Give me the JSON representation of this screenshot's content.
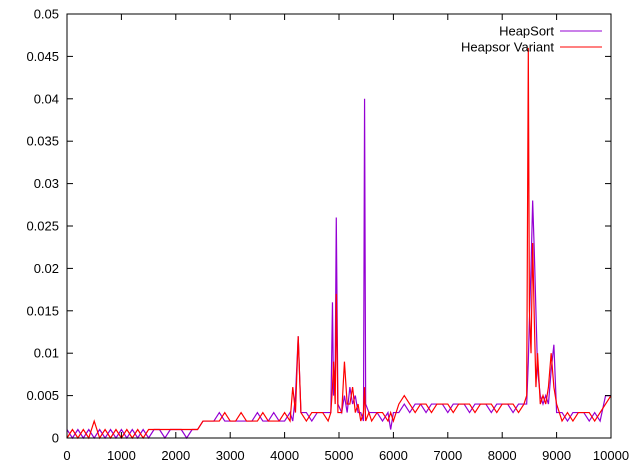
{
  "chart_data": {
    "type": "line",
    "title": "",
    "xlabel": "",
    "ylabel": "",
    "xlim": [
      0,
      10000
    ],
    "ylim": [
      0,
      0.05
    ],
    "x_ticks": [
      "0",
      "1000",
      "2000",
      "3000",
      "4000",
      "5000",
      "6000",
      "7000",
      "8000",
      "9000",
      "10000"
    ],
    "y_ticks": [
      "0",
      "0.005",
      "0.01",
      "0.015",
      "0.02",
      "0.025",
      "0.03",
      "0.035",
      "0.04",
      "0.045",
      "0.05"
    ],
    "grid": false,
    "legend_position": "top-right",
    "series": [
      {
        "name": "HeapSort",
        "color": "#9400d3",
        "points": [
          [
            0,
            0.001
          ],
          [
            100,
            0.0
          ],
          [
            200,
            0.001
          ],
          [
            300,
            0.0
          ],
          [
            400,
            0.001
          ],
          [
            500,
            0.0
          ],
          [
            600,
            0.001
          ],
          [
            700,
            0.0
          ],
          [
            800,
            0.001
          ],
          [
            900,
            0.0
          ],
          [
            1000,
            0.001
          ],
          [
            1100,
            0.0
          ],
          [
            1200,
            0.001
          ],
          [
            1300,
            0.0
          ],
          [
            1400,
            0.001
          ],
          [
            1500,
            0.0
          ],
          [
            1600,
            0.001
          ],
          [
            1700,
            0.001
          ],
          [
            1800,
            0.0
          ],
          [
            1900,
            0.001
          ],
          [
            2000,
            0.001
          ],
          [
            2100,
            0.001
          ],
          [
            2200,
            0.0
          ],
          [
            2300,
            0.001
          ],
          [
            2400,
            0.001
          ],
          [
            2500,
            0.002
          ],
          [
            2600,
            0.002
          ],
          [
            2700,
            0.002
          ],
          [
            2800,
            0.003
          ],
          [
            2900,
            0.002
          ],
          [
            3000,
            0.002
          ],
          [
            3100,
            0.002
          ],
          [
            3200,
            0.002
          ],
          [
            3300,
            0.002
          ],
          [
            3400,
            0.002
          ],
          [
            3500,
            0.003
          ],
          [
            3600,
            0.002
          ],
          [
            3700,
            0.002
          ],
          [
            3800,
            0.003
          ],
          [
            3900,
            0.002
          ],
          [
            4000,
            0.002
          ],
          [
            4100,
            0.003
          ],
          [
            4150,
            0.002
          ],
          [
            4200,
            0.005
          ],
          [
            4250,
            0.012
          ],
          [
            4300,
            0.003
          ],
          [
            4400,
            0.003
          ],
          [
            4500,
            0.002
          ],
          [
            4600,
            0.003
          ],
          [
            4700,
            0.003
          ],
          [
            4800,
            0.003
          ],
          [
            4850,
            0.003
          ],
          [
            4880,
            0.016
          ],
          [
            4900,
            0.005
          ],
          [
            4930,
            0.008
          ],
          [
            4950,
            0.026
          ],
          [
            4980,
            0.004
          ],
          [
            5050,
            0.003
          ],
          [
            5100,
            0.005
          ],
          [
            5150,
            0.003
          ],
          [
            5200,
            0.006
          ],
          [
            5250,
            0.004
          ],
          [
            5300,
            0.005
          ],
          [
            5350,
            0.003
          ],
          [
            5400,
            0.003
          ],
          [
            5450,
            0.002
          ],
          [
            5470,
            0.04
          ],
          [
            5490,
            0.004
          ],
          [
            5550,
            0.003
          ],
          [
            5600,
            0.003
          ],
          [
            5700,
            0.003
          ],
          [
            5800,
            0.002
          ],
          [
            5900,
            0.003
          ],
          [
            5950,
            0.001
          ],
          [
            6000,
            0.003
          ],
          [
            6100,
            0.003
          ],
          [
            6200,
            0.004
          ],
          [
            6300,
            0.003
          ],
          [
            6400,
            0.004
          ],
          [
            6500,
            0.004
          ],
          [
            6600,
            0.003
          ],
          [
            6700,
            0.004
          ],
          [
            6800,
            0.004
          ],
          [
            6900,
            0.004
          ],
          [
            7000,
            0.003
          ],
          [
            7100,
            0.004
          ],
          [
            7200,
            0.004
          ],
          [
            7300,
            0.004
          ],
          [
            7400,
            0.003
          ],
          [
            7500,
            0.004
          ],
          [
            7600,
            0.004
          ],
          [
            7700,
            0.004
          ],
          [
            7800,
            0.003
          ],
          [
            7900,
            0.004
          ],
          [
            8000,
            0.004
          ],
          [
            8100,
            0.004
          ],
          [
            8200,
            0.003
          ],
          [
            8300,
            0.004
          ],
          [
            8400,
            0.004
          ],
          [
            8450,
            0.004
          ],
          [
            8480,
            0.009
          ],
          [
            8500,
            0.014
          ],
          [
            8530,
            0.02
          ],
          [
            8560,
            0.028
          ],
          [
            8590,
            0.022
          ],
          [
            8620,
            0.015
          ],
          [
            8650,
            0.008
          ],
          [
            8700,
            0.005
          ],
          [
            8750,
            0.004
          ],
          [
            8800,
            0.005
          ],
          [
            8850,
            0.004
          ],
          [
            8900,
            0.008
          ],
          [
            8950,
            0.011
          ],
          [
            9000,
            0.003
          ],
          [
            9100,
            0.003
          ],
          [
            9200,
            0.002
          ],
          [
            9300,
            0.003
          ],
          [
            9400,
            0.003
          ],
          [
            9500,
            0.003
          ],
          [
            9600,
            0.002
          ],
          [
            9700,
            0.003
          ],
          [
            9800,
            0.002
          ],
          [
            9900,
            0.005
          ],
          [
            10000,
            0.005
          ]
        ]
      },
      {
        "name": "Heapsor Variant",
        "color": "#ff0000",
        "points": [
          [
            0,
            0.0
          ],
          [
            100,
            0.001
          ],
          [
            200,
            0.0
          ],
          [
            300,
            0.001
          ],
          [
            400,
            0.0
          ],
          [
            500,
            0.002
          ],
          [
            600,
            0.0
          ],
          [
            700,
            0.001
          ],
          [
            800,
            0.0
          ],
          [
            900,
            0.001
          ],
          [
            1000,
            0.0
          ],
          [
            1100,
            0.001
          ],
          [
            1200,
            0.0
          ],
          [
            1300,
            0.001
          ],
          [
            1400,
            0.0
          ],
          [
            1500,
            0.001
          ],
          [
            1600,
            0.001
          ],
          [
            1700,
            0.001
          ],
          [
            1800,
            0.001
          ],
          [
            1900,
            0.001
          ],
          [
            2000,
            0.001
          ],
          [
            2100,
            0.001
          ],
          [
            2200,
            0.001
          ],
          [
            2300,
            0.001
          ],
          [
            2400,
            0.001
          ],
          [
            2500,
            0.002
          ],
          [
            2600,
            0.002
          ],
          [
            2700,
            0.002
          ],
          [
            2800,
            0.002
          ],
          [
            2900,
            0.003
          ],
          [
            3000,
            0.002
          ],
          [
            3100,
            0.002
          ],
          [
            3200,
            0.003
          ],
          [
            3300,
            0.002
          ],
          [
            3400,
            0.002
          ],
          [
            3500,
            0.002
          ],
          [
            3600,
            0.003
          ],
          [
            3700,
            0.002
          ],
          [
            3800,
            0.002
          ],
          [
            3900,
            0.002
          ],
          [
            4000,
            0.003
          ],
          [
            4100,
            0.002
          ],
          [
            4150,
            0.006
          ],
          [
            4200,
            0.003
          ],
          [
            4250,
            0.012
          ],
          [
            4300,
            0.003
          ],
          [
            4400,
            0.002
          ],
          [
            4500,
            0.003
          ],
          [
            4600,
            0.003
          ],
          [
            4700,
            0.003
          ],
          [
            4800,
            0.002
          ],
          [
            4850,
            0.003
          ],
          [
            4880,
            0.006
          ],
          [
            4900,
            0.009
          ],
          [
            4930,
            0.004
          ],
          [
            4950,
            0.017
          ],
          [
            4980,
            0.003
          ],
          [
            5050,
            0.003
          ],
          [
            5100,
            0.009
          ],
          [
            5150,
            0.004
          ],
          [
            5200,
            0.004
          ],
          [
            5250,
            0.006
          ],
          [
            5300,
            0.003
          ],
          [
            5350,
            0.004
          ],
          [
            5400,
            0.002
          ],
          [
            5450,
            0.003
          ],
          [
            5470,
            0.006
          ],
          [
            5490,
            0.002
          ],
          [
            5550,
            0.003
          ],
          [
            5600,
            0.002
          ],
          [
            5700,
            0.003
          ],
          [
            5800,
            0.003
          ],
          [
            5900,
            0.002
          ],
          [
            5950,
            0.003
          ],
          [
            6000,
            0.002
          ],
          [
            6100,
            0.004
          ],
          [
            6200,
            0.005
          ],
          [
            6300,
            0.004
          ],
          [
            6400,
            0.003
          ],
          [
            6500,
            0.004
          ],
          [
            6600,
            0.004
          ],
          [
            6700,
            0.003
          ],
          [
            6800,
            0.004
          ],
          [
            6900,
            0.004
          ],
          [
            7000,
            0.004
          ],
          [
            7100,
            0.003
          ],
          [
            7200,
            0.004
          ],
          [
            7300,
            0.004
          ],
          [
            7400,
            0.004
          ],
          [
            7500,
            0.003
          ],
          [
            7600,
            0.004
          ],
          [
            7700,
            0.004
          ],
          [
            7800,
            0.004
          ],
          [
            7900,
            0.003
          ],
          [
            8000,
            0.004
          ],
          [
            8100,
            0.004
          ],
          [
            8200,
            0.004
          ],
          [
            8300,
            0.003
          ],
          [
            8400,
            0.004
          ],
          [
            8450,
            0.005
          ],
          [
            8480,
            0.046
          ],
          [
            8500,
            0.015
          ],
          [
            8530,
            0.01
          ],
          [
            8560,
            0.023
          ],
          [
            8590,
            0.014
          ],
          [
            8620,
            0.006
          ],
          [
            8650,
            0.01
          ],
          [
            8700,
            0.004
          ],
          [
            8750,
            0.005
          ],
          [
            8800,
            0.004
          ],
          [
            8850,
            0.006
          ],
          [
            8900,
            0.01
          ],
          [
            8950,
            0.006
          ],
          [
            9000,
            0.004
          ],
          [
            9100,
            0.002
          ],
          [
            9200,
            0.003
          ],
          [
            9300,
            0.002
          ],
          [
            9400,
            0.003
          ],
          [
            9500,
            0.003
          ],
          [
            9600,
            0.003
          ],
          [
            9700,
            0.002
          ],
          [
            9800,
            0.003
          ],
          [
            9900,
            0.004
          ],
          [
            10000,
            0.005
          ]
        ]
      }
    ]
  }
}
